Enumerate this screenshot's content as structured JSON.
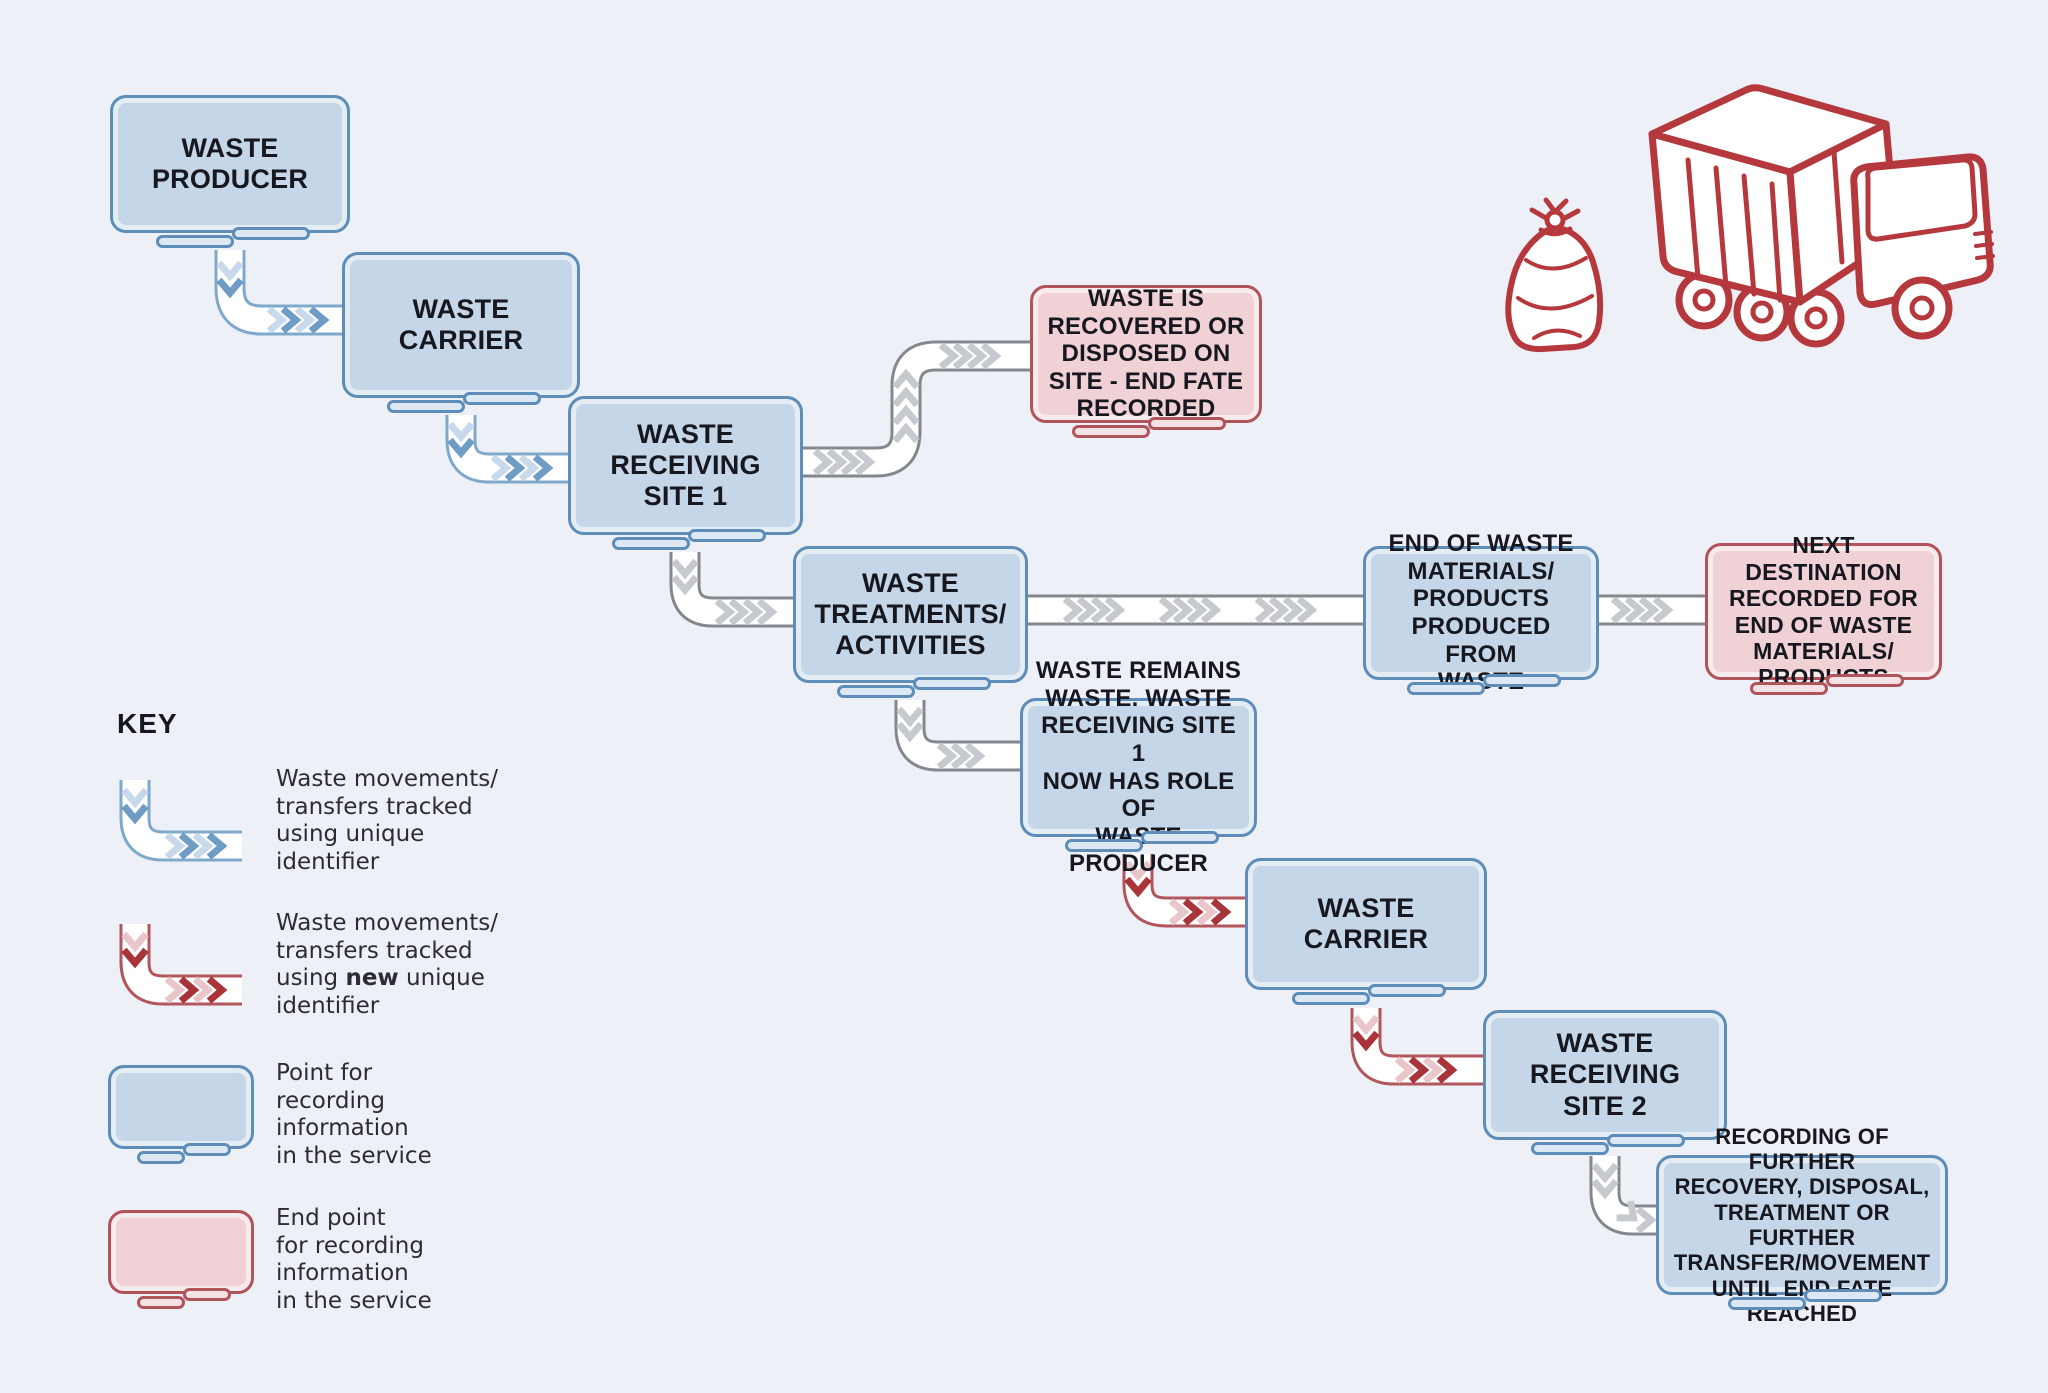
{
  "colors": {
    "background": "#edf1f7",
    "blue_fill": "#c4d6e7",
    "blue_border": "#5d8db8",
    "pink_fill": "#f0d2d6",
    "pink_border": "#b0535b",
    "text": "#17171f",
    "pipe_fill": "#ffffff",
    "pipe_blue_border": "#7fa9cb",
    "chevron_blue_light": "#c7d9ea",
    "chevron_blue_dark": "#6f9cc4",
    "pipe_red_border": "#b2555c",
    "chevron_red_light": "#e9c6c9",
    "chevron_red_dark": "#a83338",
    "pipe_gray_border": "#84888e",
    "chevron_gray": "#c6c9cd",
    "illustration_red": "#b5383d"
  },
  "icons": {
    "truck": "garbage-truck-icon",
    "bag": "waste-bag-icon"
  },
  "nodes": [
    {
      "id": "waste-producer",
      "type": "blue",
      "label": "WASTE\nPRODUCER"
    },
    {
      "id": "waste-carrier-1",
      "type": "blue",
      "label": "WASTE\nCARRIER"
    },
    {
      "id": "waste-receiving-site-1",
      "type": "blue",
      "label": "WASTE\nRECEIVING\nSITE 1"
    },
    {
      "id": "waste-recovered-on-site",
      "type": "pink",
      "label": "WASTE IS\nRECOVERED OR\nDISPOSED ON\nSITE - END FATE\nRECORDED"
    },
    {
      "id": "waste-treatments",
      "type": "blue",
      "label": "WASTE\nTREATMENTS/\nACTIVITIES"
    },
    {
      "id": "end-of-waste-materials",
      "type": "blue",
      "label": "END OF WASTE\nMATERIALS/\nPRODUCTS\nPRODUCED FROM\nWASTE"
    },
    {
      "id": "next-destination",
      "type": "pink",
      "label": "NEXT DESTINATION\nRECORDED FOR\nEND OF WASTE\nMATERIALS/\nPRODUCTS"
    },
    {
      "id": "waste-remains-waste",
      "type": "blue",
      "label": "WASTE REMAINS\nWASTE. WASTE\nRECEIVING SITE 1\nNOW HAS ROLE OF\nWASTE PRODUCER"
    },
    {
      "id": "waste-carrier-2",
      "type": "blue",
      "label": "WASTE\nCARRIER"
    },
    {
      "id": "waste-receiving-site-2",
      "type": "blue",
      "label": "WASTE\nRECEIVING\nSITE 2"
    },
    {
      "id": "recording-further",
      "type": "blue",
      "label": "RECORDING OF FURTHER\nRECOVERY, DISPOSAL,\nTREATMENT OR FURTHER\nTRANSFER/MOVEMENT\nUNTIL END FATE REACHED"
    }
  ],
  "key": {
    "title": "KEY",
    "items": [
      {
        "type": "pipe-blue",
        "label": "Waste movements/\ntransfers tracked\nusing unique\nidentifier"
      },
      {
        "type": "pipe-red",
        "parts": [
          "Waste movements/\ntransfers tracked\nusing ",
          "new",
          " unique\nidentifier"
        ]
      },
      {
        "type": "monitor-blue",
        "label": "Point for\nrecording\ninformation\nin the service"
      },
      {
        "type": "monitor-pink",
        "label": "End point\nfor recording\ninformation\nin the service"
      }
    ]
  }
}
